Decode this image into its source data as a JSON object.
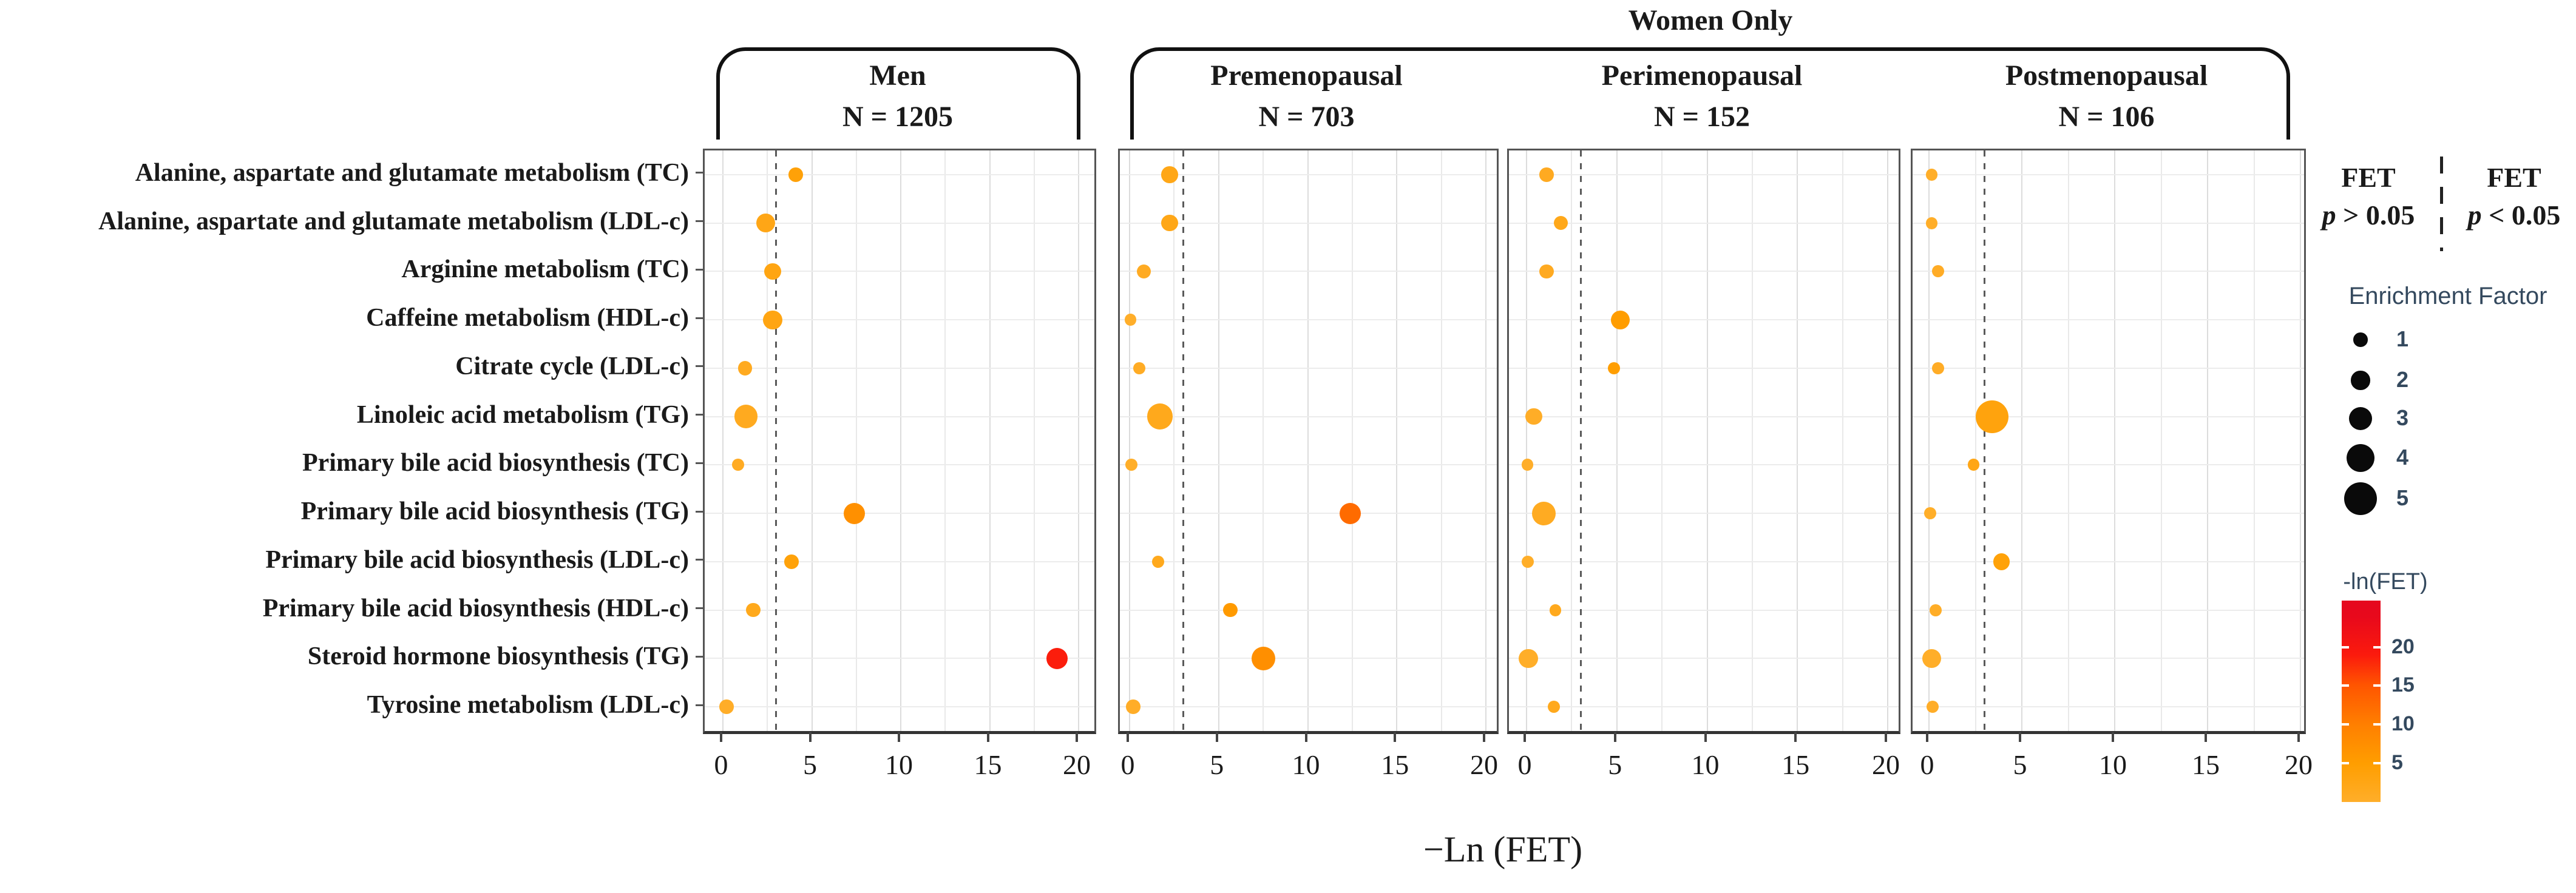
{
  "header": {
    "women_only": "Women Only"
  },
  "legend": {
    "fet_insignificant": {
      "title": "FET",
      "p_symbol": "p",
      "condition": "> 0.05"
    },
    "fet_significant": {
      "title": "FET",
      "p_symbol": "p",
      "condition": "< 0.05"
    },
    "enrichment_factor_title": "Enrichment Factor",
    "colorbar_title": "-ln(FET)"
  },
  "chart_data": {
    "type": "scatter",
    "title": "Metabolic pathway enrichment dot plot by sex and menopausal status",
    "xlabel": "−Ln (FET)",
    "xlim": [
      0,
      20
    ],
    "x_ticks": [
      0,
      5,
      10,
      15,
      20
    ],
    "significance_line_x": 3,
    "grid": true,
    "categories": [
      "Alanine, aspartate and glutamate metabolism (TC)",
      "Alanine, aspartate and glutamate metabolism (LDL-c)",
      "Arginine metabolism (TC)",
      "Caffeine metabolism (HDL-c)",
      "Citrate cycle (LDL-c)",
      "Linoleic acid metabolism (TG)",
      "Primary bile acid biosynthesis (TC)",
      "Primary bile acid biosynthesis (TG)",
      "Primary bile acid biosynthesis (LDL-c)",
      "Primary bile acid biosynthesis (HDL-c)",
      "Steroid hormone biosynthesis (TG)",
      "Tyrosine metabolism (LDL-c)"
    ],
    "panels": [
      {
        "name": "Men",
        "n_label": "N = 1205",
        "points": [
          {
            "pathway_index": 0,
            "neg_ln_fet": 4.1,
            "enrichment_factor": 1
          },
          {
            "pathway_index": 1,
            "neg_ln_fet": 2.4,
            "enrichment_factor": 2
          },
          {
            "pathway_index": 2,
            "neg_ln_fet": 2.8,
            "enrichment_factor": 1.5
          },
          {
            "pathway_index": 3,
            "neg_ln_fet": 2.8,
            "enrichment_factor": 2
          },
          {
            "pathway_index": 4,
            "neg_ln_fet": 1.25,
            "enrichment_factor": 1
          },
          {
            "pathway_index": 5,
            "neg_ln_fet": 1.3,
            "enrichment_factor": 3
          },
          {
            "pathway_index": 6,
            "neg_ln_fet": 0.85,
            "enrichment_factor": 0.5
          },
          {
            "pathway_index": 7,
            "neg_ln_fet": 7.4,
            "enrichment_factor": 2.5
          },
          {
            "pathway_index": 8,
            "neg_ln_fet": 3.85,
            "enrichment_factor": 1
          },
          {
            "pathway_index": 9,
            "neg_ln_fet": 1.7,
            "enrichment_factor": 1
          },
          {
            "pathway_index": 10,
            "neg_ln_fet": 18.8,
            "enrichment_factor": 2.5
          },
          {
            "pathway_index": 11,
            "neg_ln_fet": 0.2,
            "enrichment_factor": 1
          }
        ]
      },
      {
        "name": "Premenopausal",
        "n_label": "N = 703",
        "points": [
          {
            "pathway_index": 0,
            "neg_ln_fet": 2.25,
            "enrichment_factor": 1.5
          },
          {
            "pathway_index": 1,
            "neg_ln_fet": 2.25,
            "enrichment_factor": 1.5
          },
          {
            "pathway_index": 2,
            "neg_ln_fet": 0.8,
            "enrichment_factor": 1
          },
          {
            "pathway_index": 3,
            "neg_ln_fet": 0.05,
            "enrichment_factor": 0.5
          },
          {
            "pathway_index": 4,
            "neg_ln_fet": 0.55,
            "enrichment_factor": 0.5
          },
          {
            "pathway_index": 5,
            "neg_ln_fet": 1.7,
            "enrichment_factor": 3.5
          },
          {
            "pathway_index": 6,
            "neg_ln_fet": 0.1,
            "enrichment_factor": 0.5
          },
          {
            "pathway_index": 7,
            "neg_ln_fet": 12.4,
            "enrichment_factor": 2.5
          },
          {
            "pathway_index": 8,
            "neg_ln_fet": 1.6,
            "enrichment_factor": 0.5
          },
          {
            "pathway_index": 9,
            "neg_ln_fet": 5.65,
            "enrichment_factor": 1
          },
          {
            "pathway_index": 10,
            "neg_ln_fet": 7.5,
            "enrichment_factor": 3
          },
          {
            "pathway_index": 11,
            "neg_ln_fet": 0.2,
            "enrichment_factor": 1
          }
        ]
      },
      {
        "name": "Perimenopausal",
        "n_label": "N = 152",
        "points": [
          {
            "pathway_index": 0,
            "neg_ln_fet": 1.1,
            "enrichment_factor": 1
          },
          {
            "pathway_index": 1,
            "neg_ln_fet": 1.9,
            "enrichment_factor": 1
          },
          {
            "pathway_index": 2,
            "neg_ln_fet": 1.1,
            "enrichment_factor": 1
          },
          {
            "pathway_index": 3,
            "neg_ln_fet": 5.2,
            "enrichment_factor": 2
          },
          {
            "pathway_index": 4,
            "neg_ln_fet": 4.85,
            "enrichment_factor": 0.5
          },
          {
            "pathway_index": 5,
            "neg_ln_fet": 0.4,
            "enrichment_factor": 1.5
          },
          {
            "pathway_index": 6,
            "neg_ln_fet": 0.05,
            "enrichment_factor": 0.5
          },
          {
            "pathway_index": 7,
            "neg_ln_fet": 0.95,
            "enrichment_factor": 3
          },
          {
            "pathway_index": 8,
            "neg_ln_fet": 0.07,
            "enrichment_factor": 0.5
          },
          {
            "pathway_index": 9,
            "neg_ln_fet": 1.6,
            "enrichment_factor": 0.5
          },
          {
            "pathway_index": 10,
            "neg_ln_fet": 0.1,
            "enrichment_factor": 2
          },
          {
            "pathway_index": 11,
            "neg_ln_fet": 1.5,
            "enrichment_factor": 0.5
          }
        ]
      },
      {
        "name": "Postmenopausal",
        "n_label": "N = 106",
        "points": [
          {
            "pathway_index": 0,
            "neg_ln_fet": 0.15,
            "enrichment_factor": 0.5
          },
          {
            "pathway_index": 1,
            "neg_ln_fet": 0.15,
            "enrichment_factor": 0.5
          },
          {
            "pathway_index": 2,
            "neg_ln_fet": 0.5,
            "enrichment_factor": 0.5
          },
          {
            "pathway_index": 4,
            "neg_ln_fet": 0.5,
            "enrichment_factor": 0.5
          },
          {
            "pathway_index": 5,
            "neg_ln_fet": 3.4,
            "enrichment_factor": 5
          },
          {
            "pathway_index": 6,
            "neg_ln_fet": 2.4,
            "enrichment_factor": 0.5
          },
          {
            "pathway_index": 7,
            "neg_ln_fet": 0.07,
            "enrichment_factor": 0.5
          },
          {
            "pathway_index": 8,
            "neg_ln_fet": 3.9,
            "enrichment_factor": 1.5
          },
          {
            "pathway_index": 9,
            "neg_ln_fet": 0.35,
            "enrichment_factor": 0.5
          },
          {
            "pathway_index": 10,
            "neg_ln_fet": 0.15,
            "enrichment_factor": 2
          },
          {
            "pathway_index": 11,
            "neg_ln_fet": 0.2,
            "enrichment_factor": 0.5
          }
        ]
      }
    ],
    "size_legend_values": [
      1,
      2,
      3,
      4,
      5
    ],
    "color_scale": {
      "label": "-ln(FET)",
      "ticks": [
        20,
        15,
        10,
        5
      ],
      "range": [
        0,
        26
      ],
      "stops": [
        [
          0,
          "#FFAE2A"
        ],
        [
          5,
          "#FF9E00"
        ],
        [
          10,
          "#FF8000"
        ],
        [
          15,
          "#FF5500"
        ],
        [
          19,
          "#FB1A0D"
        ],
        [
          24,
          "#E8091C"
        ]
      ]
    },
    "legend_position": "right"
  }
}
